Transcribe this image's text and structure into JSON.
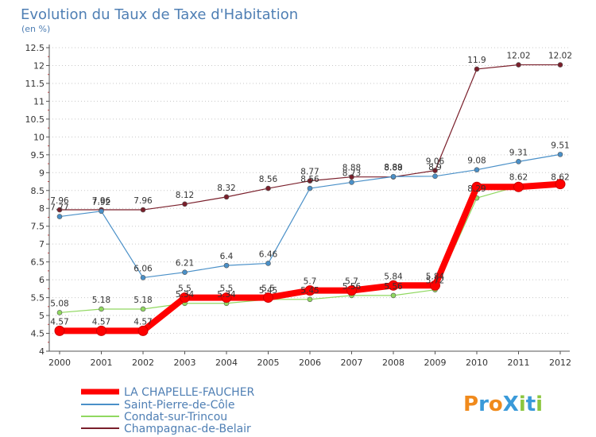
{
  "chart_data": {
    "type": "line",
    "title": "Evolution du Taux de Taxe d'Habitation",
    "subtitle": "(en %)",
    "xlabel": "",
    "ylabel": "",
    "x": [
      "2000",
      "2001",
      "2002",
      "2003",
      "2004",
      "2005",
      "2006",
      "2007",
      "2008",
      "2009",
      "2010",
      "2011",
      "2012"
    ],
    "ylim": [
      4,
      12.5
    ],
    "yticks": [
      "4",
      "4.5",
      "5",
      "5.5",
      "6",
      "6.5",
      "7",
      "7.5",
      "8",
      "8.5",
      "9",
      "9.5",
      "10",
      "10.5",
      "11",
      "11.5",
      "12",
      "12.5"
    ],
    "grid": "dotted horizontal",
    "legend_position": "bottom-left",
    "series": [
      {
        "name": "LA CHAPELLE-FAUCHER",
        "color": "#ff0000",
        "width": 8,
        "marker": 6,
        "values": [
          4.57,
          4.57,
          4.57,
          5.5,
          5.5,
          5.5,
          5.7,
          5.7,
          5.84,
          5.84,
          8.6,
          8.6,
          8.68
        ],
        "labels": [
          "4.57",
          "4.57",
          "4.57",
          "5.5",
          "5.5",
          "5.5",
          "5.7",
          "5.7",
          "5.84",
          "5.84",
          "",
          "",
          ""
        ]
      },
      {
        "name": "Saint-Pierre-de-Côle",
        "color": "#4a90c8",
        "width": 1.2,
        "marker": 3,
        "values": [
          7.77,
          7.92,
          6.06,
          6.21,
          6.4,
          6.46,
          8.56,
          8.73,
          8.89,
          8.9,
          9.08,
          9.31,
          9.51
        ],
        "labels": [
          "7.77",
          "7.92",
          "6.06",
          "6.21",
          "6.4",
          "6.46",
          "8.56",
          "8.73",
          "8.89",
          "8.9",
          "9.08",
          "9.31",
          "9.51"
        ]
      },
      {
        "name": "Condat-sur-Trincou",
        "color": "#90d860",
        "width": 1.2,
        "marker": 3,
        "values": [
          5.08,
          5.18,
          5.18,
          5.34,
          5.34,
          5.45,
          5.45,
          5.56,
          5.56,
          5.72,
          8.29,
          8.62,
          8.62
        ],
        "labels": [
          "5.08",
          "5.18",
          "5.18",
          "5.34",
          "5.34",
          "5.45",
          "5.45",
          "5.56",
          "5.56",
          "5.72",
          "8.29",
          "8.62",
          "8.62"
        ]
      },
      {
        "name": "Champagnac-de-Belair",
        "color": "#7a1f2b",
        "width": 1.2,
        "marker": 3,
        "values": [
          7.96,
          7.96,
          7.96,
          8.12,
          8.32,
          8.56,
          8.77,
          8.88,
          8.88,
          9.06,
          11.9,
          12.02,
          12.02
        ],
        "labels": [
          "7.96",
          "7.96",
          "7.96",
          "8.12",
          "8.32",
          "8.56",
          "8.77",
          "8.88",
          "8.88",
          "9.06",
          "11.9",
          "12.02",
          "12.02"
        ]
      }
    ]
  },
  "logo": {
    "text": "ProXiti"
  }
}
